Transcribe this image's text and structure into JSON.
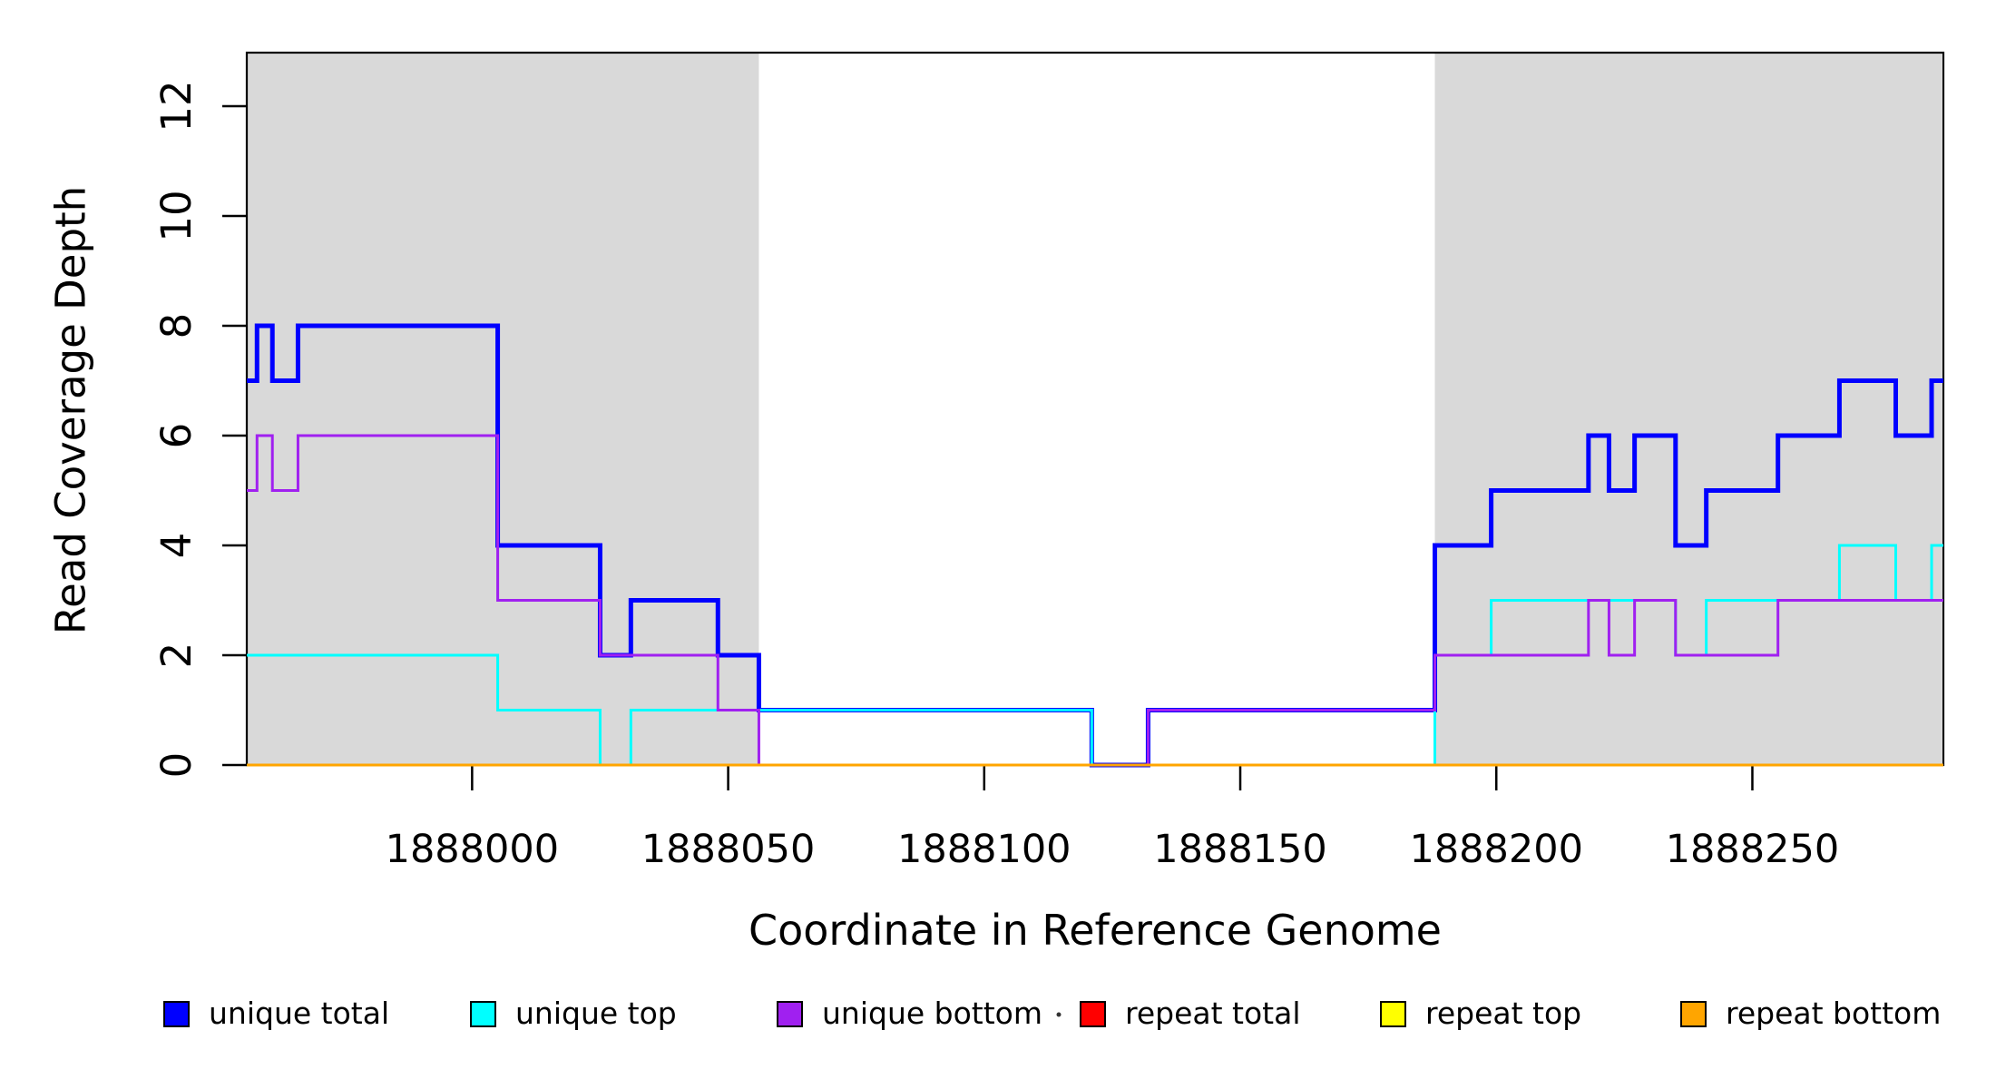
{
  "chart_data": {
    "type": "line",
    "subtype": "step-post",
    "title": "",
    "xlabel": "Coordinate in Reference Genome",
    "ylabel": "Read Coverage Depth",
    "xlim": [
      1887956,
      1888287
    ],
    "ylim": [
      0,
      13
    ],
    "grid": false,
    "x_ticks": [
      1888000,
      1888050,
      1888100,
      1888150,
      1888200,
      1888250
    ],
    "x_tick_labels": [
      "1888000",
      "1888050",
      "1888100",
      "1888150",
      "1888200",
      "1888250"
    ],
    "y_ticks": [
      0,
      2,
      4,
      6,
      8,
      10,
      12
    ],
    "y_tick_labels": [
      "0",
      "2",
      "4",
      "6",
      "8",
      "10",
      "12"
    ],
    "shaded_regions": [
      {
        "name": "left-shaded-region",
        "x0": 1887956,
        "x1": 1888056,
        "color": "#D9D9D9"
      },
      {
        "name": "right-shaded-region",
        "x0": 1888188,
        "x1": 1888287,
        "color": "#D9D9D9"
      }
    ],
    "series": [
      {
        "name": "unique total",
        "color": "#0000FF",
        "width": 5,
        "steps": [
          [
            1887956,
            7
          ],
          [
            1887958,
            8
          ],
          [
            1887961,
            7
          ],
          [
            1887966,
            8
          ],
          [
            1888005,
            4
          ],
          [
            1888025,
            2
          ],
          [
            1888031,
            3
          ],
          [
            1888048,
            2
          ],
          [
            1888056,
            1
          ],
          [
            1888121,
            0
          ],
          [
            1888132,
            1
          ],
          [
            1888188,
            4
          ],
          [
            1888199,
            5
          ],
          [
            1888218,
            6
          ],
          [
            1888222,
            5
          ],
          [
            1888227,
            6
          ],
          [
            1888235,
            4
          ],
          [
            1888241,
            5
          ],
          [
            1888255,
            6
          ],
          [
            1888267,
            7
          ],
          [
            1888278,
            6
          ],
          [
            1888285,
            7
          ]
        ]
      },
      {
        "name": "unique top",
        "color": "#00FFFF",
        "width": 3,
        "steps": [
          [
            1887956,
            2
          ],
          [
            1888005,
            1
          ],
          [
            1888025,
            0
          ],
          [
            1888031,
            1
          ],
          [
            1888121,
            0
          ],
          [
            1888188,
            2
          ],
          [
            1888199,
            3
          ],
          [
            1888235,
            2
          ],
          [
            1888241,
            3
          ],
          [
            1888267,
            4
          ],
          [
            1888278,
            3
          ],
          [
            1888285,
            4
          ]
        ]
      },
      {
        "name": "unique bottom",
        "color": "#A020F0",
        "width": 3,
        "steps": [
          [
            1887956,
            5
          ],
          [
            1887958,
            6
          ],
          [
            1887961,
            5
          ],
          [
            1887966,
            6
          ],
          [
            1888005,
            3
          ],
          [
            1888025,
            2
          ],
          [
            1888048,
            1
          ],
          [
            1888056,
            0
          ],
          [
            1888132,
            1
          ],
          [
            1888188,
            2
          ],
          [
            1888218,
            3
          ],
          [
            1888222,
            2
          ],
          [
            1888227,
            3
          ],
          [
            1888235,
            2
          ],
          [
            1888255,
            3
          ]
        ]
      },
      {
        "name": "repeat total",
        "color": "#FF0000",
        "width": 3,
        "steps": [
          [
            1887956,
            0
          ]
        ]
      },
      {
        "name": "repeat top",
        "color": "#FFFF00",
        "width": 3,
        "steps": [
          [
            1887956,
            0
          ]
        ]
      },
      {
        "name": "repeat bottom",
        "color": "#FFA500",
        "width": 3,
        "steps": [
          [
            1887956,
            0
          ]
        ]
      }
    ],
    "legend_position": "bottom",
    "legend": [
      {
        "label": "unique total",
        "color": "#0000FF"
      },
      {
        "label": "unique top",
        "color": "#00FFFF"
      },
      {
        "label": "unique bottom",
        "color": "#A020F0"
      },
      {
        "label": "repeat total",
        "color": "#FF0000"
      },
      {
        "label": "repeat top",
        "color": "#FFFF00"
      },
      {
        "label": "repeat bottom",
        "color": "#FFA500"
      }
    ]
  }
}
